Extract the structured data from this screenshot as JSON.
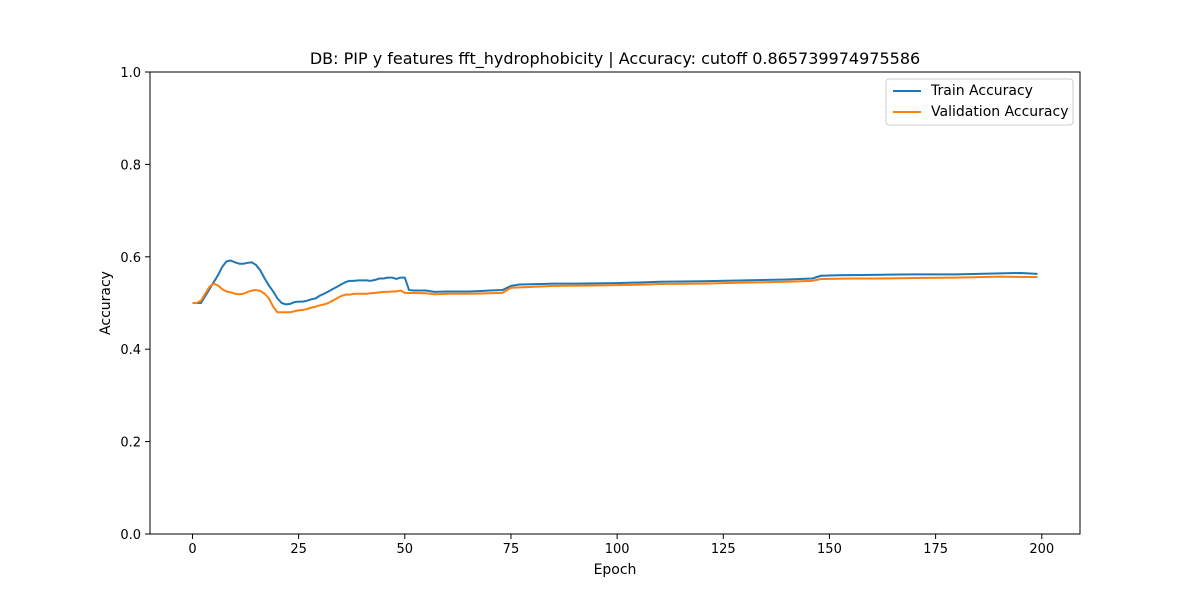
{
  "chart_data": {
    "type": "line",
    "title": "DB: PIP y features fft_hydrophobicity | Accuracy: cutoff 0.865739974975586",
    "xlabel": "Epoch",
    "ylabel": "Accuracy",
    "xlim": [
      -10,
      209
    ],
    "ylim": [
      0.0,
      1.0
    ],
    "xticks": [
      0,
      25,
      50,
      75,
      100,
      125,
      150,
      175,
      200
    ],
    "yticks": [
      0.0,
      0.2,
      0.4,
      0.6,
      0.8,
      1.0
    ],
    "xtick_labels": [
      "0",
      "25",
      "50",
      "75",
      "100",
      "125",
      "150",
      "175",
      "200"
    ],
    "ytick_labels": [
      "0.0",
      "0.2",
      "0.4",
      "0.6",
      "0.8",
      "1.0"
    ],
    "grid": false,
    "legend_position": "top-right",
    "series": [
      {
        "name": "Train Accuracy",
        "color": "#1f77b4",
        "points": [
          [
            0,
            0.5
          ],
          [
            1,
            0.5
          ],
          [
            2,
            0.5
          ],
          [
            3,
            0.515
          ],
          [
            4,
            0.53
          ],
          [
            5,
            0.545
          ],
          [
            6,
            0.56
          ],
          [
            7,
            0.578
          ],
          [
            8,
            0.59
          ],
          [
            9,
            0.592
          ],
          [
            10,
            0.588
          ],
          [
            11,
            0.585
          ],
          [
            12,
            0.585
          ],
          [
            13,
            0.587
          ],
          [
            14,
            0.588
          ],
          [
            15,
            0.582
          ],
          [
            16,
            0.57
          ],
          [
            17,
            0.553
          ],
          [
            18,
            0.538
          ],
          [
            19,
            0.525
          ],
          [
            20,
            0.51
          ],
          [
            21,
            0.5
          ],
          [
            22,
            0.497
          ],
          [
            23,
            0.498
          ],
          [
            24,
            0.502
          ],
          [
            25,
            0.503
          ],
          [
            26,
            0.503
          ],
          [
            27,
            0.505
          ],
          [
            28,
            0.508
          ],
          [
            29,
            0.51
          ],
          [
            30,
            0.516
          ],
          [
            31,
            0.52
          ],
          [
            32,
            0.525
          ],
          [
            33,
            0.53
          ],
          [
            34,
            0.535
          ],
          [
            35,
            0.54
          ],
          [
            36,
            0.545
          ],
          [
            37,
            0.548
          ],
          [
            38,
            0.548
          ],
          [
            39,
            0.549
          ],
          [
            40,
            0.549
          ],
          [
            41,
            0.549
          ],
          [
            42,
            0.548
          ],
          [
            43,
            0.55
          ],
          [
            44,
            0.553
          ],
          [
            45,
            0.553
          ],
          [
            46,
            0.555
          ],
          [
            47,
            0.555
          ],
          [
            48,
            0.552
          ],
          [
            49,
            0.555
          ],
          [
            50,
            0.555
          ],
          [
            51,
            0.528
          ],
          [
            52,
            0.527
          ],
          [
            55,
            0.527
          ],
          [
            57,
            0.524
          ],
          [
            60,
            0.525
          ],
          [
            65,
            0.525
          ],
          [
            68,
            0.526
          ],
          [
            70,
            0.527
          ],
          [
            73,
            0.528
          ],
          [
            75,
            0.537
          ],
          [
            77,
            0.54
          ],
          [
            82,
            0.541
          ],
          [
            85,
            0.542
          ],
          [
            90,
            0.542
          ],
          [
            100,
            0.543
          ],
          [
            107,
            0.545
          ],
          [
            110,
            0.546
          ],
          [
            120,
            0.547
          ],
          [
            130,
            0.549
          ],
          [
            140,
            0.551
          ],
          [
            146,
            0.553
          ],
          [
            148,
            0.559
          ],
          [
            152,
            0.56
          ],
          [
            160,
            0.561
          ],
          [
            170,
            0.562
          ],
          [
            180,
            0.562
          ],
          [
            190,
            0.564
          ],
          [
            195,
            0.565
          ],
          [
            199,
            0.563
          ]
        ]
      },
      {
        "name": "Validation Accuracy",
        "color": "#ff7f0e",
        "points": [
          [
            0,
            0.5
          ],
          [
            1,
            0.5
          ],
          [
            2,
            0.505
          ],
          [
            3,
            0.52
          ],
          [
            4,
            0.535
          ],
          [
            5,
            0.542
          ],
          [
            6,
            0.538
          ],
          [
            7,
            0.53
          ],
          [
            8,
            0.525
          ],
          [
            9,
            0.523
          ],
          [
            10,
            0.52
          ],
          [
            11,
            0.519
          ],
          [
            12,
            0.52
          ],
          [
            13,
            0.524
          ],
          [
            14,
            0.527
          ],
          [
            15,
            0.528
          ],
          [
            16,
            0.526
          ],
          [
            17,
            0.52
          ],
          [
            18,
            0.51
          ],
          [
            19,
            0.492
          ],
          [
            20,
            0.48
          ],
          [
            21,
            0.48
          ],
          [
            22,
            0.48
          ],
          [
            23,
            0.48
          ],
          [
            24,
            0.482
          ],
          [
            25,
            0.484
          ],
          [
            26,
            0.485
          ],
          [
            27,
            0.487
          ],
          [
            28,
            0.49
          ],
          [
            29,
            0.492
          ],
          [
            30,
            0.495
          ],
          [
            31,
            0.497
          ],
          [
            32,
            0.5
          ],
          [
            33,
            0.505
          ],
          [
            34,
            0.51
          ],
          [
            35,
            0.515
          ],
          [
            36,
            0.518
          ],
          [
            37,
            0.518
          ],
          [
            38,
            0.52
          ],
          [
            39,
            0.52
          ],
          [
            40,
            0.52
          ],
          [
            41,
            0.52
          ],
          [
            42,
            0.521
          ],
          [
            43,
            0.522
          ],
          [
            44,
            0.523
          ],
          [
            45,
            0.524
          ],
          [
            46,
            0.524
          ],
          [
            47,
            0.525
          ],
          [
            48,
            0.525
          ],
          [
            49,
            0.527
          ],
          [
            50,
            0.522
          ],
          [
            55,
            0.521
          ],
          [
            57,
            0.519
          ],
          [
            60,
            0.52
          ],
          [
            65,
            0.52
          ],
          [
            70,
            0.521
          ],
          [
            73,
            0.522
          ],
          [
            75,
            0.533
          ],
          [
            80,
            0.535
          ],
          [
            85,
            0.537
          ],
          [
            95,
            0.538
          ],
          [
            107,
            0.54
          ],
          [
            110,
            0.541
          ],
          [
            120,
            0.542
          ],
          [
            130,
            0.544
          ],
          [
            140,
            0.546
          ],
          [
            146,
            0.548
          ],
          [
            148,
            0.552
          ],
          [
            155,
            0.553
          ],
          [
            160,
            0.553
          ],
          [
            170,
            0.554
          ],
          [
            180,
            0.555
          ],
          [
            190,
            0.557
          ],
          [
            199,
            0.556
          ]
        ]
      }
    ]
  }
}
